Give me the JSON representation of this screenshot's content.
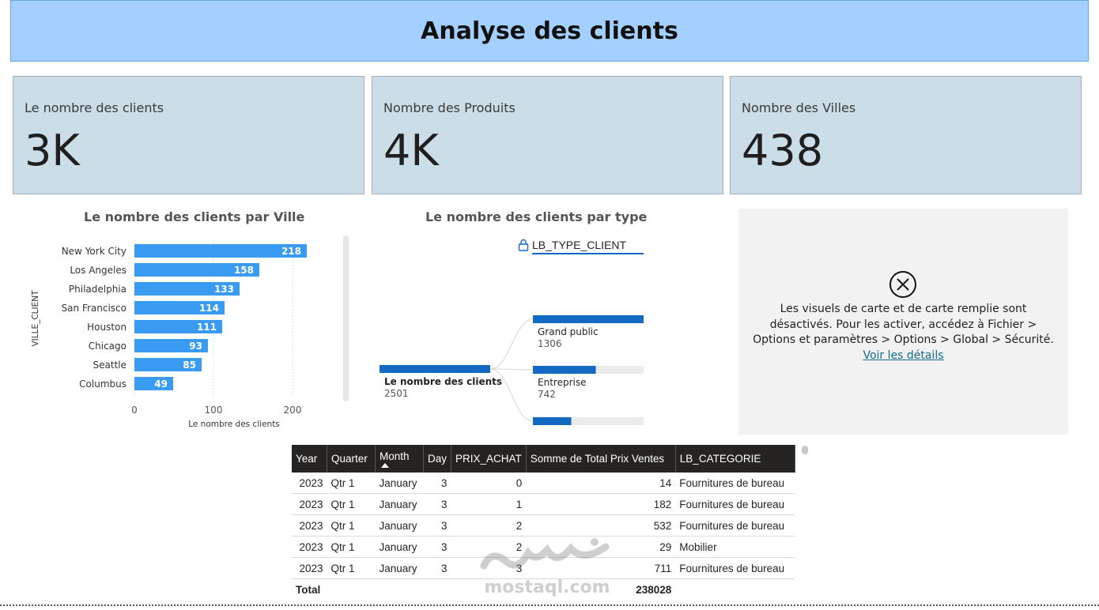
{
  "header": {
    "title": "Analyse des clients"
  },
  "kpis": [
    {
      "label": "Le nombre des clients",
      "value": "3K"
    },
    {
      "label": "Nombre des Produits",
      "value": "4K"
    },
    {
      "label": "Nombre des Villes",
      "value": "438"
    }
  ],
  "city_chart": {
    "title": "Le nombre des clients par Ville",
    "ylabel": "VILLE_CLIENT",
    "xlabel": "Le nombre des clients",
    "ticks": [
      "0",
      "100",
      "200"
    ]
  },
  "type_chart": {
    "title": "Le nombre des clients par type",
    "field": "LB_TYPE_CLIENT",
    "root": {
      "label": "Le nombre des clients",
      "value": "2501"
    },
    "nodes": [
      {
        "label": "Grand public",
        "value": "1306"
      },
      {
        "label": "Entreprise",
        "value": "742"
      },
      {
        "label": "",
        "value": ""
      }
    ]
  },
  "map": {
    "message": "Les visuels de carte et de carte remplie sont désactivés. Pour les activer, accédez à Fichier > Options et paramètres > Options > Global > Sécurité.",
    "link": "Voir les détails"
  },
  "table": {
    "headers": [
      "Year",
      "Quarter",
      "Month",
      "Day",
      "PRIX_ACHAT",
      "Somme de Total Prix Ventes",
      "LB_CATEGORIE"
    ],
    "rows": [
      [
        "2023",
        "Qtr 1",
        "January",
        "3",
        "0",
        "14",
        "Fournitures de bureau"
      ],
      [
        "2023",
        "Qtr 1",
        "January",
        "3",
        "1",
        "182",
        "Fournitures de bureau"
      ],
      [
        "2023",
        "Qtr 1",
        "January",
        "3",
        "2",
        "532",
        "Fournitures de bureau"
      ],
      [
        "2023",
        "Qtr 1",
        "January",
        "3",
        "2",
        "29",
        "Mobilier"
      ],
      [
        "2023",
        "Qtr 1",
        "January",
        "3",
        "3",
        "711",
        "Fournitures de bureau"
      ]
    ],
    "total_label": "Total",
    "total_value": "238028"
  },
  "watermark": {
    "text": "mostaql.com"
  },
  "chart_data": [
    {
      "type": "bar",
      "orientation": "horizontal",
      "title": "Le nombre des clients par Ville",
      "xlabel": "Le nombre des clients",
      "ylabel": "VILLE_CLIENT",
      "categories": [
        "New York City",
        "Los Angeles",
        "Philadelphia",
        "San Francisco",
        "Houston",
        "Chicago",
        "Seattle",
        "Columbus"
      ],
      "values": [
        218,
        158,
        133,
        114,
        111,
        93,
        85,
        49
      ],
      "xlim": [
        0,
        230
      ],
      "color": "#3a9bf3"
    },
    {
      "type": "bar",
      "title": "Le nombre des clients par type",
      "categories": [
        "Grand public",
        "Entreprise",
        ""
      ],
      "values": [
        1306,
        742,
        null
      ],
      "total": 2501,
      "color": "#1469c3"
    }
  ]
}
